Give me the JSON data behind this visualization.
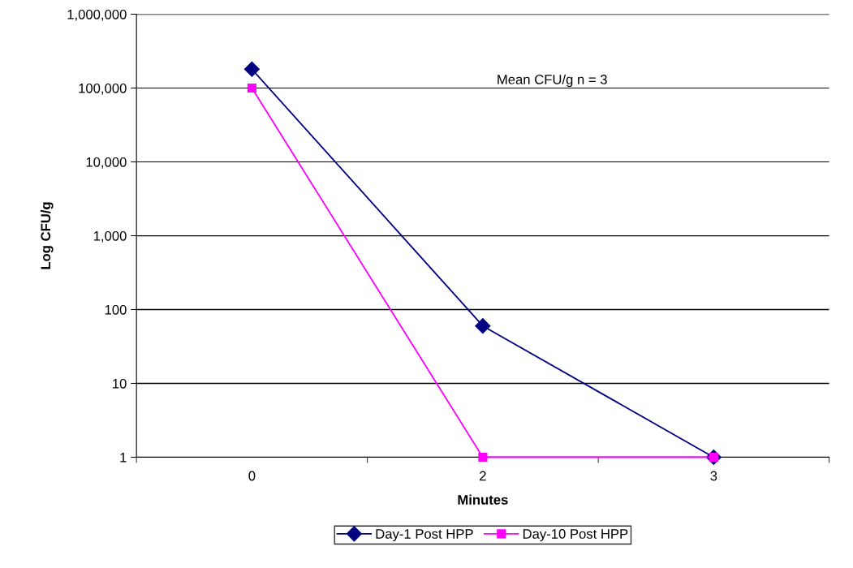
{
  "chart_data": {
    "type": "line",
    "categories": [
      "0",
      "2",
      "3"
    ],
    "xlabel": "Minutes",
    "ylabel": "Log CFU/g",
    "log": "y",
    "ylim": [
      1,
      1000000
    ],
    "yticks": [
      {
        "value": 1,
        "label": "1"
      },
      {
        "value": 10,
        "label": "10"
      },
      {
        "value": 100,
        "label": "100"
      },
      {
        "value": 1000,
        "label": "1,000"
      },
      {
        "value": 10000,
        "label": "10,000"
      },
      {
        "value": 100000,
        "label": "100,000"
      },
      {
        "value": 1000000,
        "label": "1,000,000"
      }
    ],
    "grid": "y",
    "legend": "bottom",
    "annotations": [
      "Mean CFU/g n = 3"
    ],
    "series": [
      {
        "name": "Day-1 Post HPP",
        "color": "#000080",
        "marker": "diamond",
        "values": [
          180000,
          60,
          1
        ]
      },
      {
        "name": "Day-10 Post HPP",
        "color": "#ff00ff",
        "marker": "square",
        "values": [
          100000,
          1,
          1
        ]
      }
    ]
  }
}
